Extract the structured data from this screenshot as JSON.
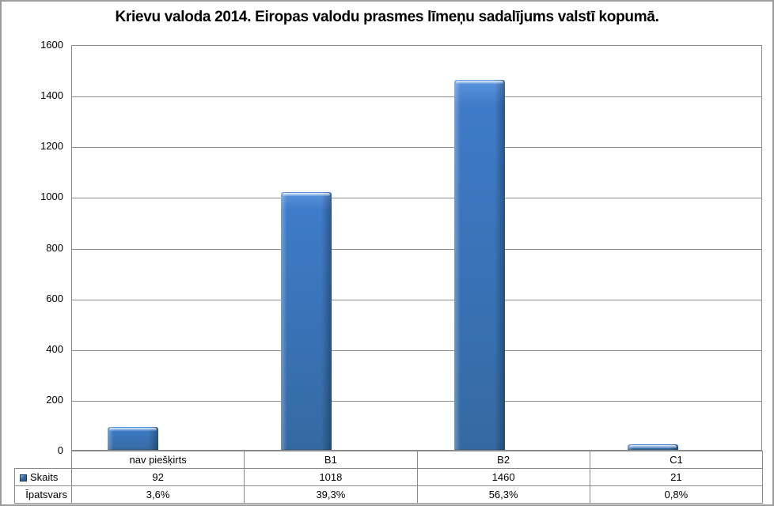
{
  "title": "Krievu valoda 2014. Eiropas valodu prasmes līmeņu sadalījums valstī kopumā.",
  "chart_data": {
    "type": "bar",
    "title": "Krievu valoda 2014. Eiropas valodu prasmes līmeņu sadalījums valstī kopumā.",
    "categories": [
      "nav piešķirts",
      "B1",
      "B2",
      "C1"
    ],
    "series": [
      {
        "name": "Skaits",
        "values": [
          92,
          1018,
          1460,
          21
        ],
        "has_legend_key": true
      },
      {
        "name": "Īpatsvars",
        "values": [
          "3,6%",
          "39,3%",
          "56,3%",
          "0,8%"
        ],
        "has_legend_key": false
      }
    ],
    "xlabel": "",
    "ylabel": "",
    "ylim": [
      0,
      1600
    ],
    "ytick_interval": 200,
    "yticks": [
      0,
      200,
      400,
      600,
      800,
      1000,
      1200,
      1400,
      1600
    ],
    "grid": true,
    "legend_position": "data-table-left",
    "notes": "values shown in data table under x-axis; Skaits row carries the series legend key"
  },
  "colors": {
    "bar_fill": "#3e7bc8",
    "bar_fill_dark": "#346aa2",
    "bar_highlight": "#a9ccf2",
    "legend_key_fill": "#2a5488",
    "grid_line": "#8f8f8f",
    "plot_border": "#8a8a8a",
    "outer_border": "#9b9b9b",
    "text": "#000000"
  }
}
